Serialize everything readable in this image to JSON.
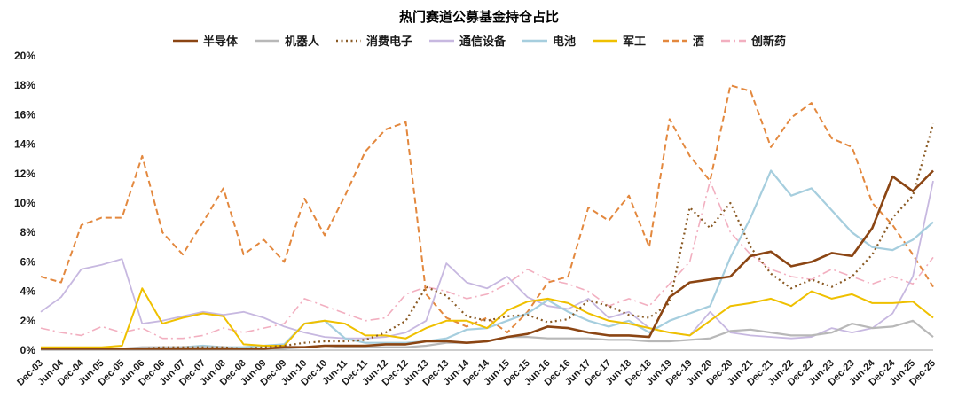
{
  "title": "热门赛道公募基金持仓占比",
  "chart_data": {
    "type": "line",
    "title": "热门赛道公募基金持仓占比",
    "ylabel": "",
    "xlabel": "",
    "ylim": [
      0,
      20
    ],
    "y_tick_step": 2,
    "y_tick_format": "percent",
    "grid": false,
    "legend_position": "top",
    "categories": [
      "Dec-03",
      "Jun-04",
      "Dec-04",
      "Jun-05",
      "Dec-05",
      "Jun-06",
      "Dec-06",
      "Jun-07",
      "Dec-07",
      "Jun-08",
      "Dec-08",
      "Jun-09",
      "Dec-09",
      "Jun-10",
      "Dec-10",
      "Jun-11",
      "Dec-11",
      "Jun-12",
      "Dec-12",
      "Jun-13",
      "Dec-13",
      "Jun-14",
      "Dec-14",
      "Jun-15",
      "Dec-15",
      "Jun-16",
      "Dec-16",
      "Jun-17",
      "Dec-17",
      "Jun-18",
      "Dec-18",
      "Jun-19",
      "Dec-19",
      "Jun-20",
      "Dec-20",
      "Jun-21",
      "Dec-21",
      "Jun-22",
      "Dec-22",
      "Jun-23",
      "Dec-23",
      "Jun-24",
      "Dec-24",
      "Jun-25",
      "Dec-25"
    ],
    "series": [
      {
        "name": "半导体",
        "color": "#8B4513",
        "line_style": "solid",
        "width": 2.6,
        "values": [
          0.1,
          0.1,
          0.1,
          0.1,
          0.1,
          0.1,
          0.1,
          0.1,
          0.1,
          0.1,
          0.1,
          0.1,
          0.2,
          0.2,
          0.3,
          0.3,
          0.3,
          0.4,
          0.4,
          0.6,
          0.6,
          0.5,
          0.6,
          0.9,
          1.1,
          1.6,
          1.5,
          1.2,
          1.0,
          1.0,
          0.9,
          3.6,
          4.6,
          4.8,
          5.0,
          6.4,
          6.7,
          5.7,
          6.0,
          6.6,
          6.4,
          8.3,
          11.8,
          10.8,
          12.2
        ]
      },
      {
        "name": "机器人",
        "color": "#B8B8B8",
        "line_style": "solid",
        "width": 2.2,
        "values": [
          0.1,
          0.1,
          0.1,
          0.1,
          0.1,
          0.2,
          0.2,
          0.2,
          0.2,
          0.2,
          0.1,
          0.1,
          0.1,
          0.2,
          0.3,
          0.2,
          0.2,
          0.2,
          0.2,
          0.3,
          0.5,
          0.5,
          0.6,
          0.9,
          0.9,
          0.8,
          0.8,
          0.8,
          0.7,
          0.7,
          0.6,
          0.6,
          0.7,
          0.8,
          1.3,
          1.4,
          1.2,
          1.0,
          1.0,
          1.2,
          1.8,
          1.5,
          1.6,
          2.0,
          0.9
        ]
      },
      {
        "name": "消费电子",
        "color": "#8A5A24",
        "line_style": "dotted",
        "width": 2.2,
        "values": [
          0.1,
          0.1,
          0.1,
          0.1,
          0.1,
          0.1,
          0.2,
          0.2,
          0.2,
          0.2,
          0.1,
          0.2,
          0.3,
          0.5,
          0.6,
          0.6,
          0.7,
          1.2,
          2.0,
          4.3,
          3.7,
          2.3,
          2.0,
          2.3,
          2.4,
          1.9,
          2.1,
          3.4,
          3.0,
          2.4,
          2.2,
          3.2,
          9.7,
          8.3,
          10.0,
          7.0,
          5.2,
          4.2,
          4.8,
          4.3,
          5.0,
          6.5,
          9.0,
          10.5,
          15.4
        ]
      },
      {
        "name": "通信设备",
        "color": "#C7B8E0",
        "line_style": "solid",
        "width": 1.8,
        "values": [
          2.6,
          3.6,
          5.5,
          5.8,
          6.2,
          1.8,
          2.0,
          2.3,
          2.6,
          2.4,
          2.6,
          2.2,
          1.6,
          1.2,
          0.9,
          0.8,
          0.8,
          0.9,
          1.2,
          2.0,
          5.9,
          4.6,
          4.2,
          5.0,
          3.6,
          3.0,
          2.8,
          3.5,
          2.2,
          2.6,
          1.5,
          1.2,
          1.0,
          2.6,
          1.2,
          1.0,
          0.9,
          0.8,
          0.9,
          1.5,
          1.2,
          1.5,
          2.5,
          5.0,
          11.5
        ]
      },
      {
        "name": "电池",
        "color": "#A6CEDE",
        "line_style": "solid",
        "width": 2.2,
        "values": [
          0.1,
          0.1,
          0.1,
          0.1,
          0.1,
          0.1,
          0.1,
          0.2,
          0.3,
          0.2,
          0.2,
          0.3,
          0.4,
          1.8,
          2.0,
          0.8,
          0.5,
          0.5,
          0.5,
          0.6,
          0.8,
          1.4,
          1.5,
          2.0,
          2.5,
          3.4,
          2.6,
          2.0,
          1.6,
          2.0,
          1.2,
          2.0,
          2.5,
          3.0,
          6.3,
          9.0,
          12.2,
          10.5,
          11.0,
          9.5,
          8.0,
          7.0,
          6.8,
          7.5,
          8.7
        ]
      },
      {
        "name": "军工",
        "color": "#EFC000",
        "line_style": "solid",
        "width": 2.0,
        "values": [
          0.2,
          0.2,
          0.2,
          0.2,
          0.3,
          4.2,
          1.8,
          2.2,
          2.5,
          2.3,
          0.4,
          0.3,
          0.3,
          1.8,
          2.0,
          1.8,
          1.0,
          1.0,
          0.8,
          1.5,
          2.0,
          2.0,
          1.5,
          2.7,
          3.3,
          3.5,
          3.2,
          2.5,
          2.0,
          1.8,
          1.5,
          1.2,
          1.0,
          2.0,
          3.0,
          3.2,
          3.5,
          3.0,
          4.0,
          3.5,
          3.8,
          3.2,
          3.2,
          3.3,
          2.2
        ]
      },
      {
        "name": "酒",
        "color": "#E3883E",
        "line_style": "dashed",
        "width": 2.0,
        "values": [
          5.0,
          4.6,
          8.5,
          9.0,
          9.0,
          13.2,
          8.0,
          6.5,
          8.7,
          11.0,
          6.5,
          7.5,
          6.0,
          10.3,
          7.8,
          10.5,
          13.5,
          15.0,
          15.5,
          3.8,
          2.2,
          1.6,
          2.2,
          1.2,
          2.6,
          4.6,
          5.0,
          9.7,
          8.8,
          10.5,
          7.0,
          15.7,
          13.2,
          11.5,
          18.0,
          17.6,
          13.8,
          15.8,
          16.8,
          14.4,
          13.8,
          10.0,
          8.5,
          6.5,
          4.3
        ]
      },
      {
        "name": "创新药",
        "color": "#F2AFC0",
        "line_style": "dashdot",
        "width": 1.6,
        "values": [
          1.5,
          1.2,
          1.0,
          1.6,
          1.2,
          1.5,
          0.8,
          0.8,
          1.0,
          1.5,
          1.2,
          1.5,
          1.8,
          3.5,
          3.0,
          2.5,
          2.0,
          2.2,
          3.8,
          4.3,
          4.0,
          3.5,
          3.8,
          4.5,
          5.5,
          4.8,
          4.5,
          4.0,
          3.0,
          3.5,
          3.0,
          4.5,
          6.0,
          11.5,
          8.0,
          6.5,
          5.5,
          5.0,
          4.8,
          5.5,
          5.0,
          4.5,
          5.0,
          4.5,
          6.3
        ]
      }
    ]
  }
}
